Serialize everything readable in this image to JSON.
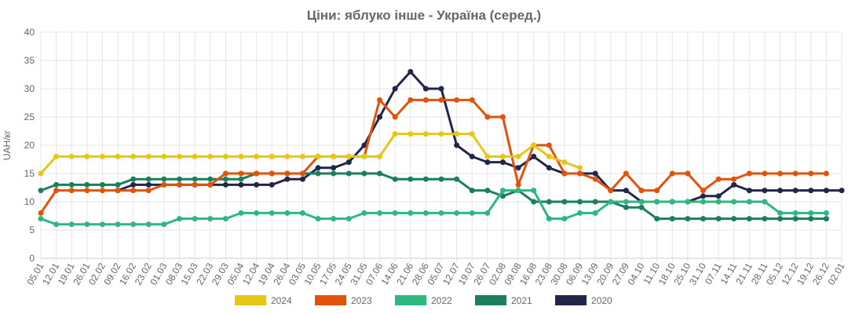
{
  "chart_data": {
    "type": "line",
    "title": "Ціни: яблуко інше - Україна (серед.)",
    "ylabel": "UAH/кг",
    "xlabel": "",
    "ylim": [
      0,
      40
    ],
    "yticks": [
      0,
      5,
      10,
      15,
      20,
      25,
      30,
      35,
      40
    ],
    "grid": true,
    "legend_position": "bottom",
    "categories": [
      "05.01",
      "12.01",
      "19.01",
      "26.01",
      "02.02",
      "09.02",
      "16.02",
      "23.02",
      "01.03",
      "08.03",
      "15.03",
      "22.03",
      "29.03",
      "05.04",
      "12.04",
      "19.04",
      "26.04",
      "03.05",
      "10.05",
      "17.05",
      "24.05",
      "31.05",
      "07.06",
      "14.06",
      "21.06",
      "28.06",
      "05.07",
      "12.07",
      "19.07",
      "26.07",
      "02.08",
      "09.08",
      "16.08",
      "23.08",
      "30.08",
      "06.09",
      "13.09",
      "20.09",
      "27.09",
      "04.10",
      "11.10",
      "18.10",
      "25.10",
      "31.10",
      "07.11",
      "14.11",
      "21.11",
      "28.11",
      "05.12",
      "12.12",
      "19.12",
      "26.12",
      "02.01"
    ],
    "series": [
      {
        "name": "2024",
        "color": "#e6c619",
        "values": [
          15,
          18,
          18,
          18,
          18,
          18,
          18,
          18,
          18,
          18,
          18,
          18,
          18,
          18,
          18,
          18,
          18,
          18,
          18,
          18,
          18,
          18,
          18,
          22,
          22,
          22,
          22,
          22,
          22,
          18,
          18,
          18,
          20,
          18,
          17,
          16,
          null,
          null,
          null,
          null,
          null,
          null,
          null,
          null,
          null,
          null,
          null,
          null,
          null,
          null,
          null,
          null,
          null
        ]
      },
      {
        "name": "2023",
        "color": "#e2520b",
        "values": [
          8,
          12,
          12,
          12,
          12,
          12,
          12,
          12,
          13,
          13,
          13,
          13,
          15,
          15,
          15,
          15,
          15,
          15,
          18,
          18,
          18,
          18,
          28,
          25,
          28,
          28,
          28,
          28,
          28,
          25,
          25,
          13,
          20,
          20,
          15,
          15,
          14,
          12,
          15,
          12,
          12,
          15,
          15,
          12,
          14,
          14,
          15,
          15,
          15,
          15,
          15,
          15,
          null
        ]
      },
      {
        "name": "2022",
        "color": "#2db87f",
        "values": [
          7,
          6,
          6,
          6,
          6,
          6,
          6,
          6,
          6,
          7,
          7,
          7,
          7,
          8,
          8,
          8,
          8,
          8,
          7,
          7,
          7,
          8,
          8,
          8,
          8,
          8,
          8,
          8,
          8,
          8,
          12,
          12,
          12,
          7,
          7,
          8,
          8,
          10,
          10,
          10,
          10,
          10,
          10,
          10,
          10,
          10,
          10,
          10,
          8,
          8,
          8,
          8,
          null
        ]
      },
      {
        "name": "2021",
        "color": "#1b7f5c",
        "values": [
          12,
          13,
          13,
          13,
          13,
          13,
          14,
          14,
          14,
          14,
          14,
          14,
          14,
          14,
          15,
          15,
          15,
          15,
          15,
          15,
          15,
          15,
          15,
          14,
          14,
          14,
          14,
          14,
          12,
          12,
          11,
          12,
          10,
          10,
          10,
          10,
          10,
          10,
          9,
          9,
          7,
          7,
          7,
          7,
          7,
          7,
          7,
          7,
          7,
          7,
          7,
          7,
          null
        ]
      },
      {
        "name": "2020",
        "color": "#22274a",
        "values": [
          null,
          null,
          null,
          null,
          null,
          12,
          13,
          13,
          13,
          13,
          13,
          13,
          13,
          13,
          13,
          13,
          14,
          14,
          16,
          16,
          17,
          20,
          25,
          30,
          33,
          30,
          30,
          20,
          18,
          17,
          17,
          16,
          18,
          16,
          15,
          15,
          15,
          12,
          12,
          10,
          10,
          10,
          10,
          11,
          11,
          13,
          12,
          12,
          12,
          12,
          12,
          12,
          12
        ]
      }
    ]
  }
}
